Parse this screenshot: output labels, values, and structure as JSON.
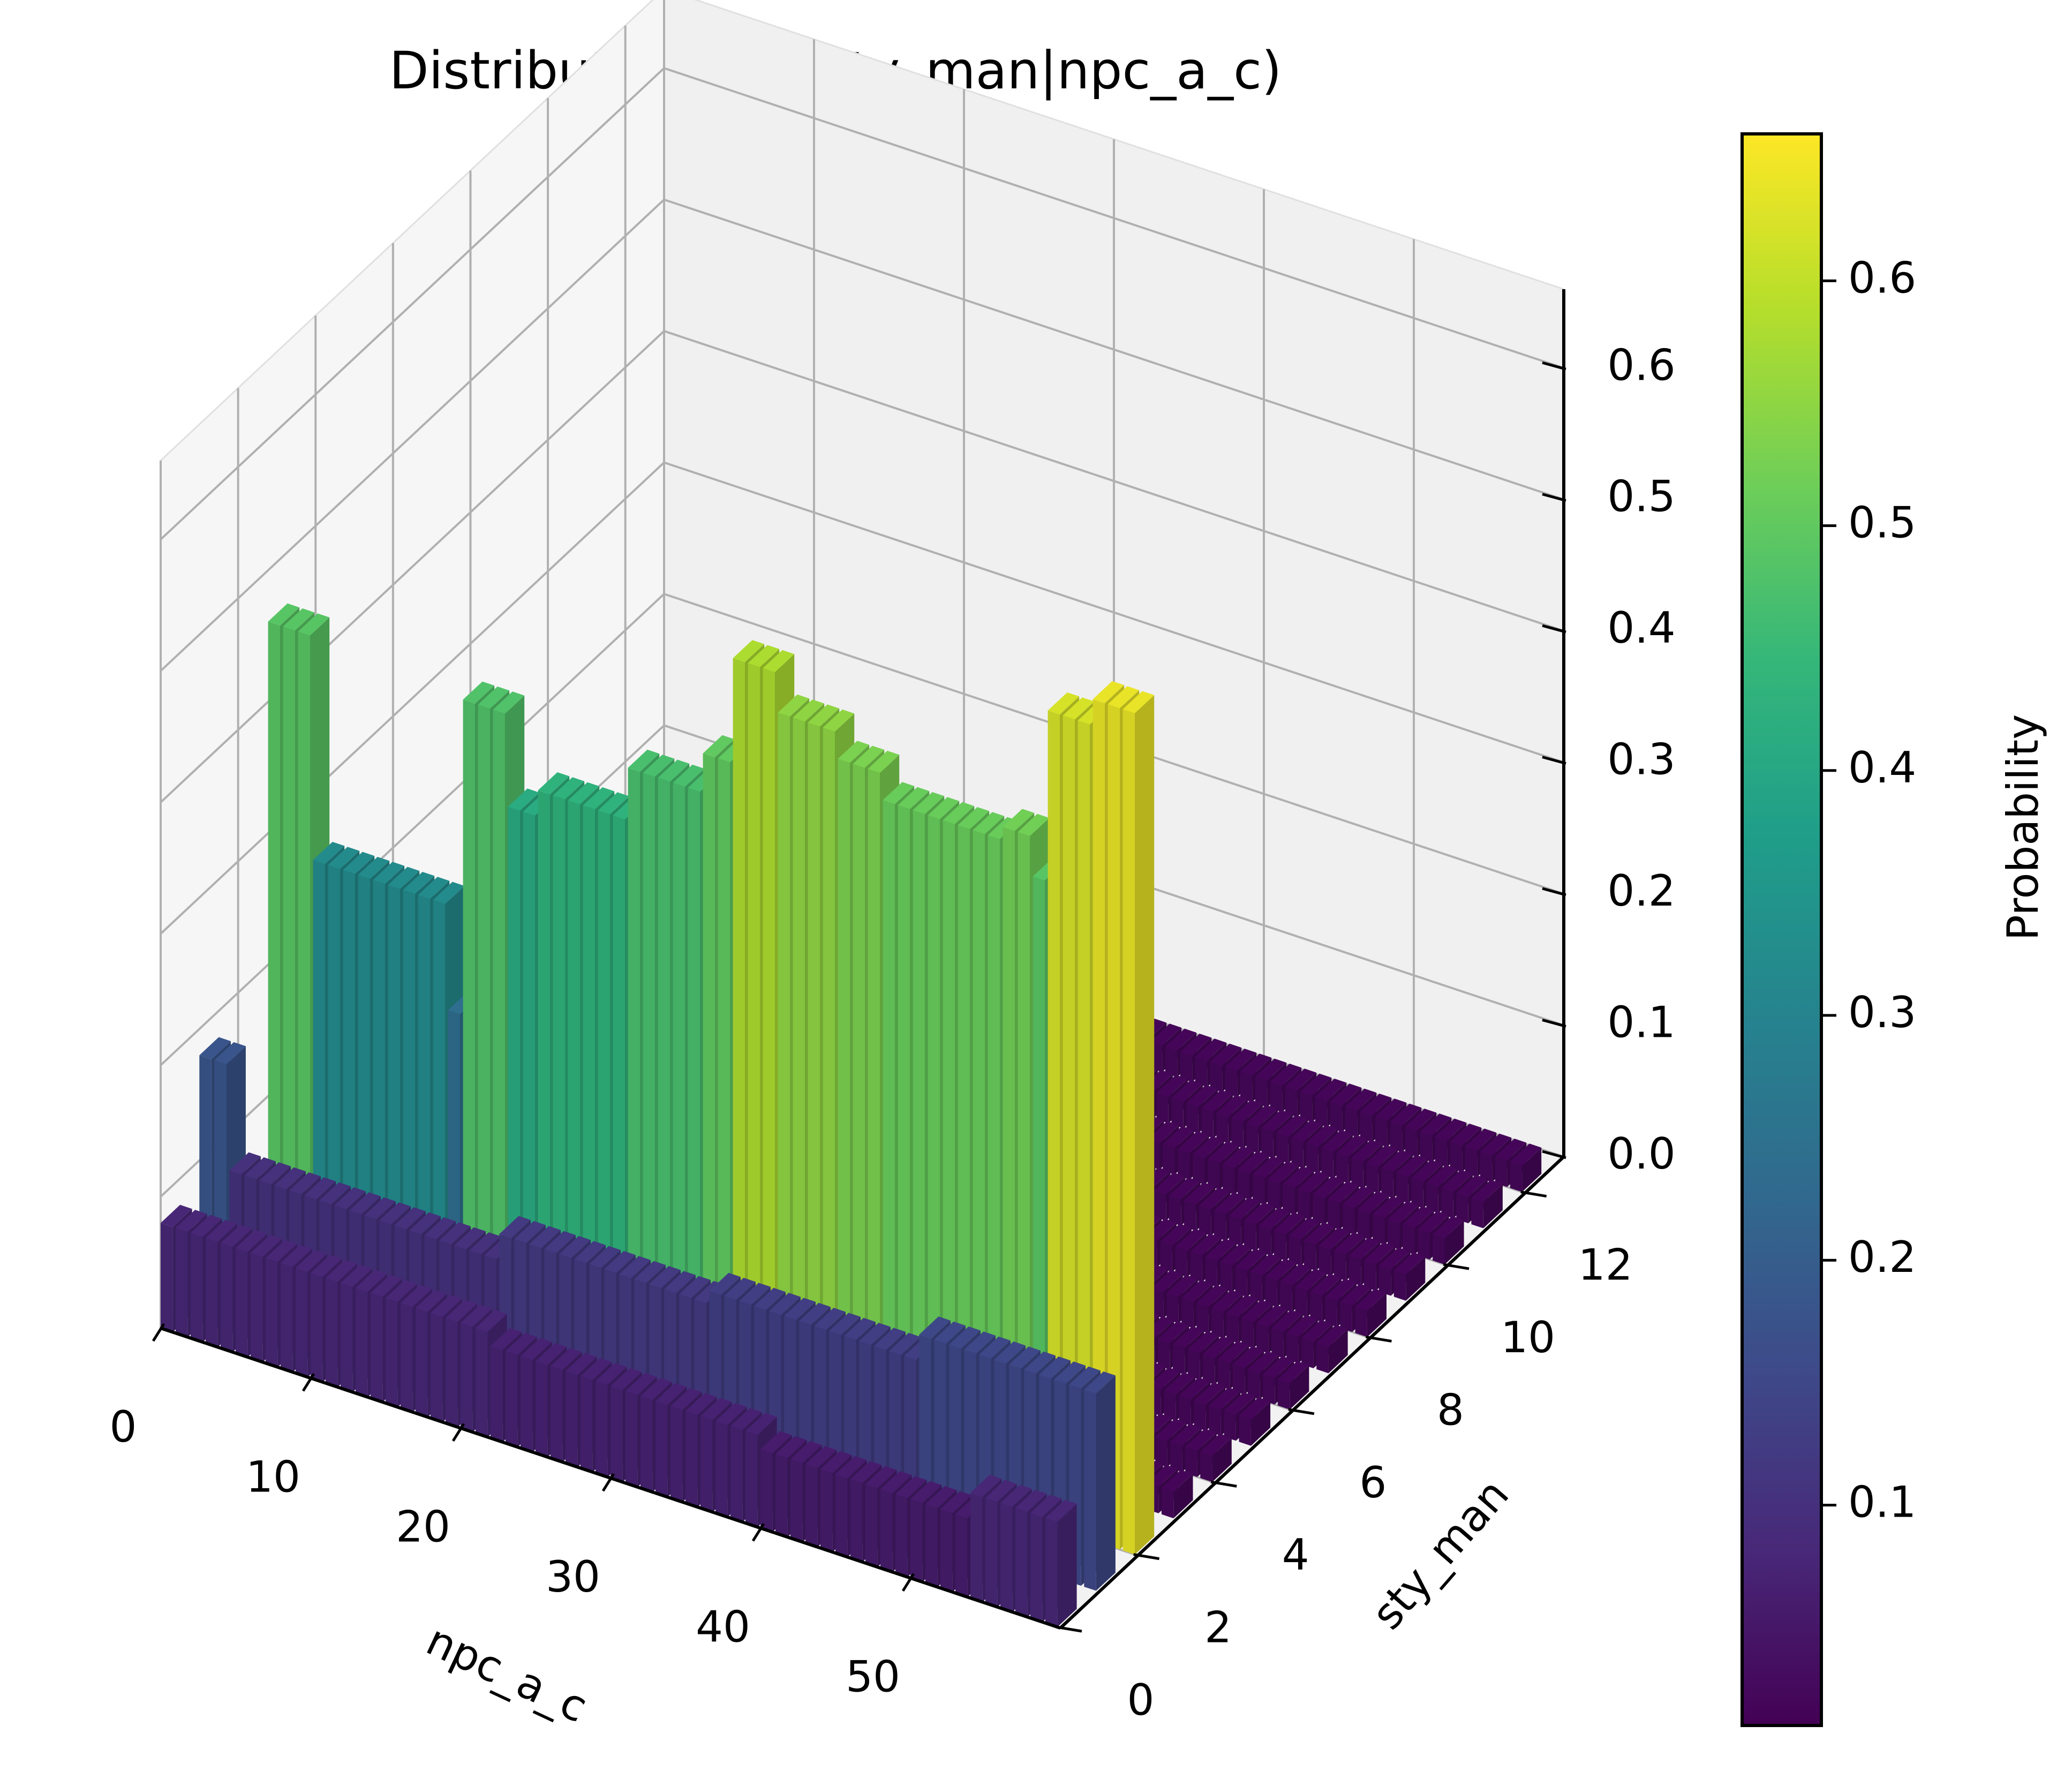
{
  "chart_data": {
    "type": "bar3d",
    "title": "Distribution of P(sty_man|npc_a_c)",
    "xlabel": "npc_a_c",
    "ylabel": "sty_man",
    "zlabel": "",
    "x_ticks": [
      "0",
      "10",
      "20",
      "30",
      "40",
      "50"
    ],
    "y_ticks": [
      "0",
      "2",
      "4",
      "6",
      "8",
      "10",
      "12"
    ],
    "z_ticks": [
      "0.0",
      "0.1",
      "0.2",
      "0.3",
      "0.4",
      "0.5",
      "0.6"
    ],
    "xlim": [
      0,
      60
    ],
    "ylim": [
      0,
      13
    ],
    "zlim": [
      0,
      0.66
    ],
    "colorbar": {
      "label": "Probability",
      "colormap": "viridis",
      "range": [
        0.01,
        0.66
      ],
      "ticks": [
        "0.1",
        "0.2",
        "0.3",
        "0.4",
        "0.5",
        "0.6"
      ]
    },
    "grid": true,
    "series": [
      {
        "sty_man": 0,
        "values": [
          0.08,
          0.08,
          0.08,
          0.08,
          0.08,
          0.08,
          0.08,
          0.08,
          0.08,
          0.08,
          0.08,
          0.08,
          0.08,
          0.08,
          0.08,
          0.08,
          0.08,
          0.08,
          0.08,
          0.08,
          0.08,
          0.08,
          0.07,
          0.07,
          0.07,
          0.07,
          0.07,
          0.07,
          0.07,
          0.07,
          0.07,
          0.07,
          0.07,
          0.07,
          0.07,
          0.07,
          0.07,
          0.07,
          0.07,
          0.07,
          0.06,
          0.06,
          0.06,
          0.06,
          0.06,
          0.06,
          0.06,
          0.06,
          0.06,
          0.06,
          0.06,
          0.06,
          0.06,
          0.06,
          0.08,
          0.08,
          0.08,
          0.08,
          0.08,
          0.08
        ]
      },
      {
        "sty_man": 1,
        "values": [
          0.18,
          0.18,
          0.1,
          0.1,
          0.1,
          0.1,
          0.1,
          0.1,
          0.1,
          0.1,
          0.1,
          0.1,
          0.1,
          0.1,
          0.1,
          0.1,
          0.1,
          0.1,
          0.1,
          0.1,
          0.12,
          0.12,
          0.12,
          0.12,
          0.12,
          0.12,
          0.12,
          0.12,
          0.12,
          0.12,
          0.12,
          0.12,
          0.12,
          0.12,
          0.13,
          0.13,
          0.13,
          0.13,
          0.13,
          0.13,
          0.13,
          0.13,
          0.13,
          0.13,
          0.13,
          0.13,
          0.13,
          0.13,
          0.15,
          0.15,
          0.15,
          0.15,
          0.15,
          0.15,
          0.15,
          0.15,
          0.15,
          0.15,
          0.15,
          0.15
        ]
      },
      {
        "sty_man": 2,
        "values": [
          0.03,
          0.03,
          0.49,
          0.49,
          0.49,
          0.32,
          0.32,
          0.32,
          0.32,
          0.32,
          0.32,
          0.32,
          0.32,
          0.32,
          0.24,
          0.48,
          0.48,
          0.48,
          0.41,
          0.41,
          0.43,
          0.43,
          0.43,
          0.43,
          0.43,
          0.43,
          0.47,
          0.47,
          0.47,
          0.47,
          0.47,
          0.5,
          0.5,
          0.58,
          0.58,
          0.58,
          0.55,
          0.55,
          0.55,
          0.55,
          0.53,
          0.53,
          0.53,
          0.51,
          0.51,
          0.51,
          0.51,
          0.51,
          0.51,
          0.51,
          0.51,
          0.52,
          0.52,
          0.49,
          0.62,
          0.62,
          0.62,
          0.64,
          0.64,
          0.64
        ]
      },
      {
        "sty_man": 3,
        "values": [
          0.02,
          0.02,
          0.02,
          0.02,
          0.02,
          0.02,
          0.02,
          0.02,
          0.02,
          0.02,
          0.02,
          0.02,
          0.02,
          0.02,
          0.02,
          0.02,
          0.02,
          0.02,
          0.02,
          0.02,
          0.02,
          0.02,
          0.02,
          0.02,
          0.02,
          0.02,
          0.02,
          0.02,
          0.02,
          0.02,
          0.02,
          0.02,
          0.02,
          0.02,
          0.02,
          0.02,
          0.02,
          0.02,
          0.02,
          0.02,
          0.02,
          0.02,
          0.02,
          0.02,
          0.02,
          0.02,
          0.02,
          0.02,
          0.02,
          0.02,
          0.02,
          0.02,
          0.02,
          0.02,
          0.02,
          0.02,
          0.02,
          0.02,
          0.02,
          0.02
        ]
      },
      {
        "sty_man": 4,
        "values": [
          0.02,
          0.02,
          0.02,
          0.02,
          0.02,
          0.02,
          0.02,
          0.02,
          0.02,
          0.02,
          0.02,
          0.02,
          0.02,
          0.02,
          0.02,
          0.02,
          0.02,
          0.02,
          0.02,
          0.02,
          0.02,
          0.02,
          0.02,
          0.02,
          0.02,
          0.02,
          0.02,
          0.02,
          0.02,
          0.02,
          0.02,
          0.02,
          0.02,
          0.02,
          0.02,
          0.02,
          0.02,
          0.02,
          0.02,
          0.02,
          0.02,
          0.02,
          0.02,
          0.02,
          0.02,
          0.02,
          0.02,
          0.02,
          0.02,
          0.02,
          0.02,
          0.02,
          0.02,
          0.02,
          0.02,
          0.02,
          0.02,
          0.02,
          0.02,
          0.02
        ]
      },
      {
        "sty_man": 5,
        "values": [
          0.02,
          0.02,
          0.02,
          0.02,
          0.02,
          0.02,
          0.02,
          0.02,
          0.02,
          0.02,
          0.02,
          0.02,
          0.02,
          0.02,
          0.02,
          0.02,
          0.02,
          0.02,
          0.02,
          0.02,
          0.02,
          0.02,
          0.02,
          0.02,
          0.02,
          0.02,
          0.02,
          0.02,
          0.02,
          0.02,
          0.02,
          0.02,
          0.02,
          0.02,
          0.02,
          0.02,
          0.02,
          0.02,
          0.02,
          0.02,
          0.02,
          0.02,
          0.02,
          0.02,
          0.02,
          0.02,
          0.02,
          0.02,
          0.02,
          0.02,
          0.02,
          0.02,
          0.02,
          0.02,
          0.02,
          0.02,
          0.02,
          0.02,
          0.02,
          0.02
        ]
      },
      {
        "sty_man": 6,
        "values": [
          0.02,
          0.02,
          0.02,
          0.02,
          0.02,
          0.02,
          0.02,
          0.02,
          0.02,
          0.02,
          0.02,
          0.02,
          0.02,
          0.02,
          0.02,
          0.02,
          0.02,
          0.02,
          0.02,
          0.02,
          0.02,
          0.02,
          0.02,
          0.02,
          0.02,
          0.02,
          0.02,
          0.02,
          0.02,
          0.02,
          0.02,
          0.02,
          0.02,
          0.02,
          0.02,
          0.02,
          0.02,
          0.02,
          0.02,
          0.02,
          0.02,
          0.02,
          0.02,
          0.02,
          0.02,
          0.02,
          0.02,
          0.02,
          0.02,
          0.02,
          0.02,
          0.02,
          0.02,
          0.02,
          0.02,
          0.02,
          0.02,
          0.02,
          0.02,
          0.02
        ]
      },
      {
        "sty_man": 7,
        "values": [
          0.02,
          0.02,
          0.02,
          0.02,
          0.02,
          0.02,
          0.02,
          0.02,
          0.02,
          0.02,
          0.02,
          0.02,
          0.02,
          0.02,
          0.02,
          0.02,
          0.02,
          0.02,
          0.02,
          0.02,
          0.02,
          0.02,
          0.02,
          0.02,
          0.02,
          0.02,
          0.02,
          0.02,
          0.02,
          0.02,
          0.02,
          0.02,
          0.02,
          0.02,
          0.02,
          0.02,
          0.02,
          0.02,
          0.02,
          0.02,
          0.02,
          0.02,
          0.02,
          0.02,
          0.02,
          0.02,
          0.02,
          0.02,
          0.02,
          0.02,
          0.02,
          0.02,
          0.02,
          0.02,
          0.02,
          0.02,
          0.02,
          0.02,
          0.02,
          0.02
        ]
      },
      {
        "sty_man": 8,
        "values": [
          0.02,
          0.02,
          0.02,
          0.02,
          0.02,
          0.02,
          0.02,
          0.02,
          0.02,
          0.02,
          0.02,
          0.02,
          0.02,
          0.02,
          0.02,
          0.02,
          0.02,
          0.02,
          0.02,
          0.02,
          0.02,
          0.02,
          0.02,
          0.02,
          0.02,
          0.02,
          0.02,
          0.02,
          0.02,
          0.02,
          0.02,
          0.02,
          0.02,
          0.02,
          0.02,
          0.02,
          0.02,
          0.02,
          0.02,
          0.02,
          0.02,
          0.02,
          0.02,
          0.02,
          0.02,
          0.02,
          0.02,
          0.02,
          0.02,
          0.02,
          0.02,
          0.02,
          0.02,
          0.02,
          0.02,
          0.02,
          0.02,
          0.02,
          0.02,
          0.02
        ]
      },
      {
        "sty_man": 9,
        "values": [
          0.02,
          0.02,
          0.02,
          0.02,
          0.02,
          0.02,
          0.02,
          0.02,
          0.02,
          0.02,
          0.02,
          0.02,
          0.02,
          0.02,
          0.02,
          0.02,
          0.02,
          0.02,
          0.02,
          0.02,
          0.02,
          0.02,
          0.02,
          0.02,
          0.02,
          0.02,
          0.02,
          0.02,
          0.02,
          0.02,
          0.02,
          0.02,
          0.02,
          0.02,
          0.02,
          0.02,
          0.02,
          0.02,
          0.02,
          0.02,
          0.02,
          0.02,
          0.02,
          0.02,
          0.02,
          0.02,
          0.02,
          0.02,
          0.02,
          0.02,
          0.02,
          0.02,
          0.02,
          0.02,
          0.02,
          0.02,
          0.02,
          0.02,
          0.02,
          0.02
        ]
      },
      {
        "sty_man": 10,
        "values": [
          0.02,
          0.02,
          0.02,
          0.02,
          0.02,
          0.02,
          0.02,
          0.02,
          0.02,
          0.02,
          0.02,
          0.02,
          0.02,
          0.02,
          0.02,
          0.02,
          0.02,
          0.02,
          0.02,
          0.02,
          0.02,
          0.02,
          0.02,
          0.02,
          0.02,
          0.02,
          0.02,
          0.02,
          0.02,
          0.02,
          0.02,
          0.02,
          0.02,
          0.02,
          0.02,
          0.02,
          0.02,
          0.02,
          0.02,
          0.02,
          0.02,
          0.02,
          0.02,
          0.02,
          0.02,
          0.02,
          0.02,
          0.02,
          0.02,
          0.02,
          0.02,
          0.02,
          0.02,
          0.02,
          0.02,
          0.02,
          0.02,
          0.02,
          0.02,
          0.02
        ]
      },
      {
        "sty_man": 11,
        "values": [
          0.02,
          0.02,
          0.02,
          0.02,
          0.02,
          0.02,
          0.02,
          0.02,
          0.02,
          0.02,
          0.02,
          0.02,
          0.02,
          0.02,
          0.02,
          0.02,
          0.02,
          0.02,
          0.02,
          0.02,
          0.02,
          0.02,
          0.02,
          0.02,
          0.02,
          0.02,
          0.02,
          0.02,
          0.02,
          0.02,
          0.02,
          0.02,
          0.02,
          0.02,
          0.02,
          0.02,
          0.02,
          0.02,
          0.02,
          0.02,
          0.02,
          0.02,
          0.02,
          0.02,
          0.02,
          0.02,
          0.02,
          0.02,
          0.02,
          0.02,
          0.02,
          0.02,
          0.02,
          0.02,
          0.02,
          0.02,
          0.02,
          0.02,
          0.02,
          0.02
        ]
      },
      {
        "sty_man": 12,
        "values": [
          0.02,
          0.02,
          0.02,
          0.02,
          0.02,
          0.02,
          0.02,
          0.02,
          0.02,
          0.02,
          0.02,
          0.02,
          0.02,
          0.02,
          0.02,
          0.02,
          0.02,
          0.02,
          0.02,
          0.02,
          0.02,
          0.02,
          0.02,
          0.02,
          0.02,
          0.02,
          0.02,
          0.02,
          0.02,
          0.02,
          0.02,
          0.02,
          0.02,
          0.02,
          0.02,
          0.02,
          0.02,
          0.02,
          0.02,
          0.02,
          0.02,
          0.02,
          0.02,
          0.02,
          0.02,
          0.02,
          0.02,
          0.02,
          0.02,
          0.02,
          0.02,
          0.02,
          0.02,
          0.02,
          0.02,
          0.02,
          0.02,
          0.02,
          0.02,
          0.02
        ]
      }
    ]
  }
}
